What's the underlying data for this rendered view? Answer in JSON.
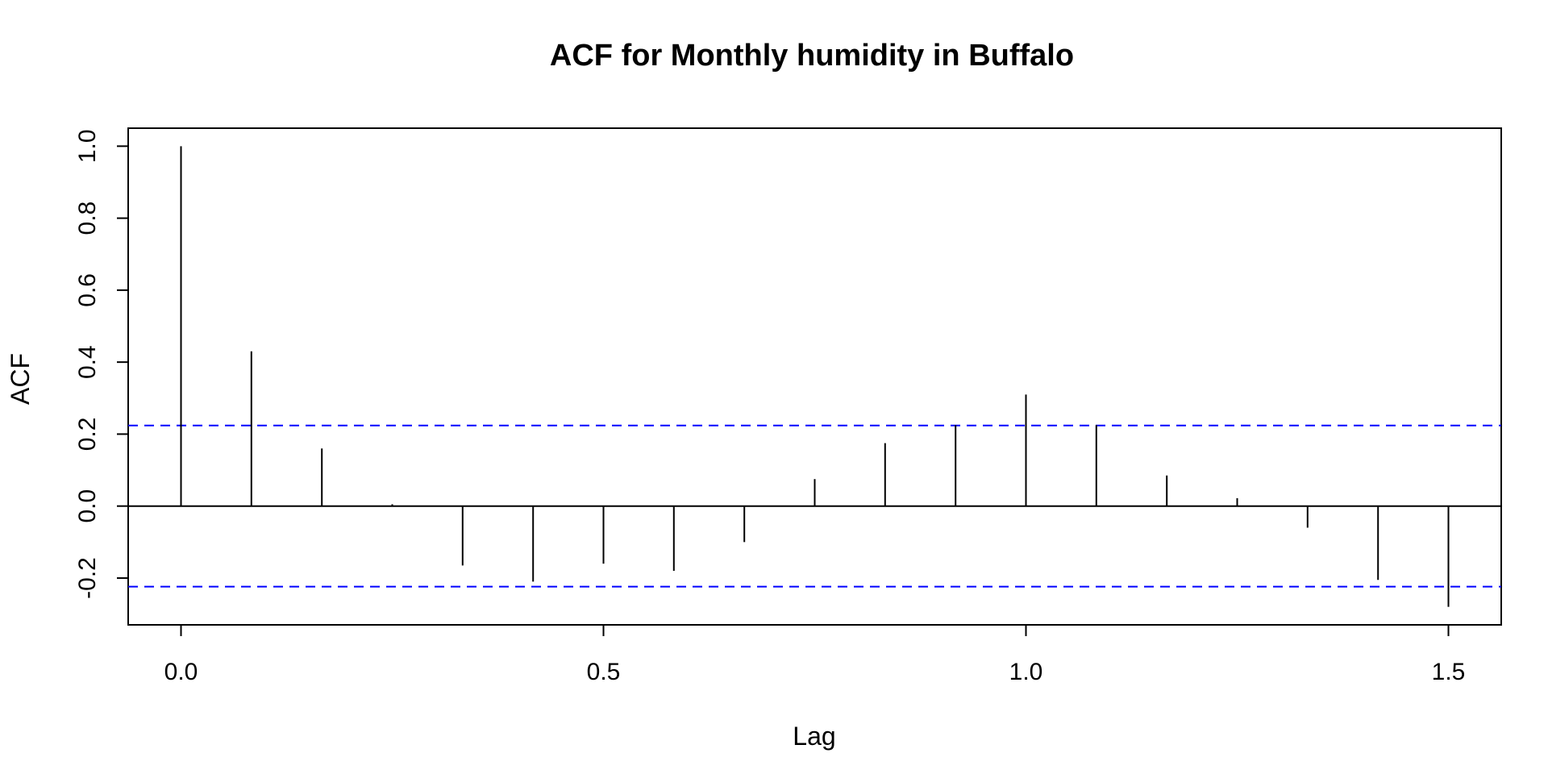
{
  "chart_data": {
    "type": "bar",
    "title": "ACF for Monthly humidity in Buffalo",
    "xlabel": "Lag",
    "ylabel": "ACF",
    "xlim": [
      -0.0625,
      1.5625
    ],
    "ylim": [
      -0.33,
      1.05
    ],
    "x_ticks": [
      0.0,
      0.5,
      1.0,
      1.5
    ],
    "x_tick_labels": [
      "0.0",
      "0.5",
      "1.0",
      "1.5"
    ],
    "y_ticks": [
      -0.2,
      0.0,
      0.2,
      0.4,
      0.6,
      0.8,
      1.0
    ],
    "y_tick_labels": [
      "-0.2",
      "0.0",
      "0.2",
      "0.4",
      "0.6",
      "0.8",
      "1.0"
    ],
    "confidence_bounds": [
      0.224,
      -0.224
    ],
    "confidence_color": "#0000ff",
    "bar_color": "#000000",
    "grid": false,
    "lags": [
      0.0,
      0.0833,
      0.1667,
      0.25,
      0.3333,
      0.4167,
      0.5,
      0.5833,
      0.6667,
      0.75,
      0.8333,
      0.9167,
      1.0,
      1.0833,
      1.1667,
      1.25,
      1.3333,
      1.4167,
      1.5
    ],
    "values": [
      1.0,
      0.43,
      0.16,
      0.005,
      -0.165,
      -0.21,
      -0.16,
      -0.18,
      -0.1,
      0.075,
      0.175,
      0.225,
      0.31,
      0.225,
      0.085,
      0.022,
      -0.06,
      -0.205,
      -0.28
    ]
  }
}
